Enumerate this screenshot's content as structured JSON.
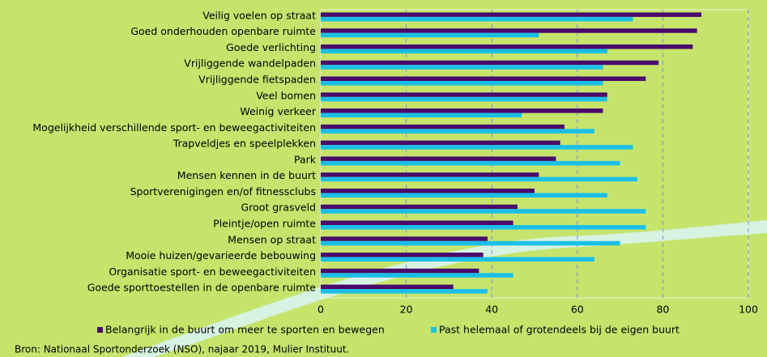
{
  "chart_data": {
    "type": "hbar",
    "categories": [
      "Veilig voelen op straat",
      "Goed onderhouden openbare ruimte",
      "Goede verlichting",
      "Vrijliggende wandelpaden",
      "Vrijliggende fietspaden",
      "Veel bomen",
      "Weinig verkeer",
      "Mogelijkheid verschillende sport- en beweegactiviteiten",
      "Trapveldjes en speelplekken",
      "Park",
      "Mensen kennen in de buurt",
      "Sportverenigingen en/of fitnessclubs",
      "Groot grasveld",
      "Pleintje/open ruimte",
      "Mensen op straat",
      "Mooie huizen/gevarieerde bebouwing",
      "Organisatie sport- en beweegactiviteiten",
      "Goede sporttoestellen in de openbare ruimte"
    ],
    "series": [
      {
        "name": "Belangrijk in de buurt om meer te sporten en bewegen",
        "color": "#4a0a6b",
        "values": [
          89,
          88,
          87,
          79,
          76,
          67,
          66,
          57,
          56,
          55,
          51,
          50,
          46,
          45,
          39,
          38,
          37,
          31
        ]
      },
      {
        "name": "Past helemaal of grotendeels bij de eigen buurt",
        "color": "#1bbfe6",
        "values": [
          73,
          51,
          67,
          66,
          66,
          67,
          47,
          64,
          73,
          70,
          74,
          67,
          76,
          76,
          70,
          64,
          45,
          39
        ]
      }
    ],
    "xlim": [
      0,
      100
    ],
    "xticks": [
      0,
      20,
      40,
      60,
      80,
      100
    ],
    "grid": true,
    "source": "Bron: Nationaal Sportonderzoek (NSO), najaar 2019, Mulier Instituut."
  }
}
